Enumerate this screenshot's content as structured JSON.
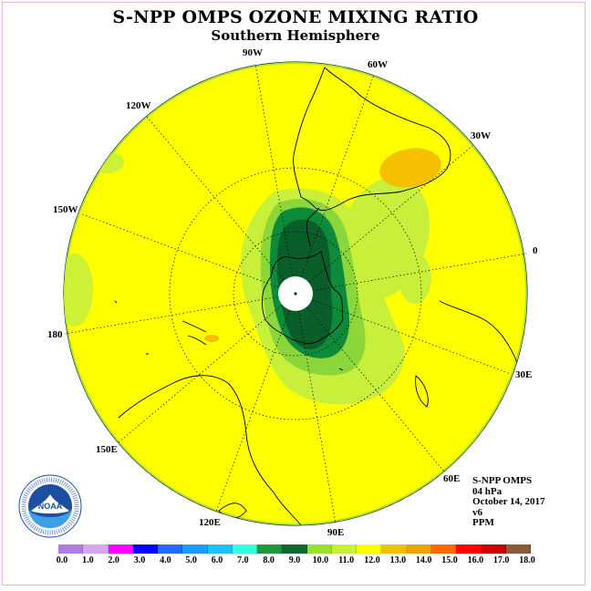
{
  "header": {
    "title": "S-NPP OMPS OZONE MIXING RATIO",
    "subtitle": "Southern Hemisphere"
  },
  "map": {
    "projection": "polar stereographic (south pole)",
    "longitude_labels": {
      "lon_90w": "90W",
      "lon_60w": "60W",
      "lon_30w": "30W",
      "lon_0": "0",
      "lon_30e": "30E",
      "lon_60e": "60E",
      "lon_90e": "90E",
      "lon_120e": "120E",
      "lon_150e": "150E",
      "lon_180": "180",
      "lon_150w": "150W",
      "lon_120w": "120W"
    },
    "colors": {
      "background_field": "#ffff00",
      "high_region": "#f4c000",
      "contour_11": "#a6e030",
      "contour_10": "#8bd63a",
      "contour_9": "#0d8a3a",
      "contour_8": "#0a5e2a",
      "polar_gap": "#ffffff"
    }
  },
  "info": {
    "instrument": "S-NPP OMPS",
    "level": "04 hPa",
    "date": "October 14, 2017",
    "version": "v6",
    "units": "PPM"
  },
  "logo": {
    "text": "NOAA",
    "ring_text": "NATIONAL OCEANIC AND ATMOSPHERIC ADMINISTRATION · U.S. DEPARTMENT OF COMMERCE"
  },
  "colorbar": {
    "ticks": [
      "0.0",
      "1.0",
      "2.0",
      "3.0",
      "4.0",
      "5.0",
      "6.0",
      "7.0",
      "8.0",
      "9.0",
      "10.0",
      "11.0",
      "12.0",
      "13.0",
      "14.0",
      "15.0",
      "16.0",
      "17.0",
      "18.0"
    ],
    "colors": [
      "#b07ce8",
      "#d7a6f2",
      "#ff00ff",
      "#0000ff",
      "#1f6cff",
      "#1f9bff",
      "#1fc0ff",
      "#33ffe0",
      "#1a9a3c",
      "#0a6b2d",
      "#9ae02f",
      "#c8f03a",
      "#ffff00",
      "#f2c000",
      "#f0a000",
      "#ff6a00",
      "#ff0000",
      "#c80000",
      "#8b5a3c"
    ]
  }
}
